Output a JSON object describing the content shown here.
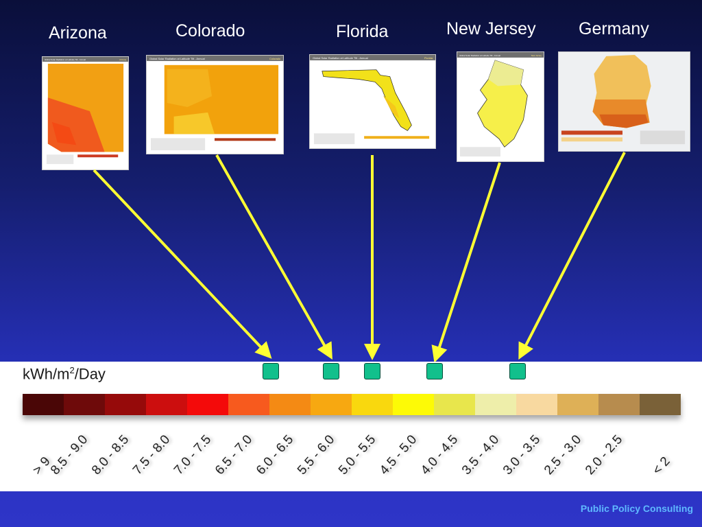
{
  "regions": [
    {
      "label": "Arizona",
      "map_title": "Global Solar Radiation at Latitude Tilt - Annual",
      "tag": "Arizona",
      "fill": "#f05a1e",
      "rating_index": 6
    },
    {
      "label": "Colorado",
      "map_title": "Global Solar Radiation at Latitude Tilt - Annual",
      "tag": "Colorado",
      "fill": "#f2a20c",
      "rating_index": 8
    },
    {
      "label": "Florida",
      "map_title": "Global Solar Radiation at Latitude Tilt - Annual",
      "tag": "Florida",
      "fill": "#f2e11a",
      "rating_index": 9
    },
    {
      "label": "New Jersey",
      "map_title": "Global Solar Radiation at Latitude Tilt - Annual",
      "tag": "New Jersey",
      "fill": "#f6ef4a",
      "rating_index": 11
    },
    {
      "label": "Germany",
      "map_title": "",
      "tag": "",
      "fill": "#e88a2a",
      "rating_index": 13
    }
  ],
  "legend": {
    "unit_prefix": "kWh/m",
    "unit_exponent": "2",
    "unit_suffix": "/Day",
    "bins": [
      {
        "label": "> 9",
        "color": "#4a0606"
      },
      {
        "label": "8.5 - 9.0",
        "color": "#6e0a0a"
      },
      {
        "label": "8.0 - 8.5",
        "color": "#960a0a"
      },
      {
        "label": "7.5 - 8.0",
        "color": "#cc0e0e"
      },
      {
        "label": "7.0 - 7.5",
        "color": "#f40a0a"
      },
      {
        "label": "6.5 - 7.0",
        "color": "#f75a1e"
      },
      {
        "label": "6.0 - 6.5",
        "color": "#f48a14"
      },
      {
        "label": "5.5 - 6.0",
        "color": "#f7a811"
      },
      {
        "label": "5.0 - 5.5",
        "color": "#f9d80e"
      },
      {
        "label": "4.5 - 5.0",
        "color": "#fdfa06"
      },
      {
        "label": "4.0 - 4.5",
        "color": "#e8e64c"
      },
      {
        "label": "3.5 - 4.0",
        "color": "#eeeeaa"
      },
      {
        "label": "3.0 - 3.5",
        "color": "#f8d9a0"
      },
      {
        "label": "2.5 - 3.0",
        "color": "#deb057"
      },
      {
        "label": "2.0 - 2.5",
        "color": "#b78c4e"
      },
      {
        "label": "< 2",
        "color": "#7a6138"
      }
    ]
  },
  "colors": {
    "arrow": "#ffff33",
    "marker": "#12c08c"
  },
  "footer": "Public Policy Consulting"
}
